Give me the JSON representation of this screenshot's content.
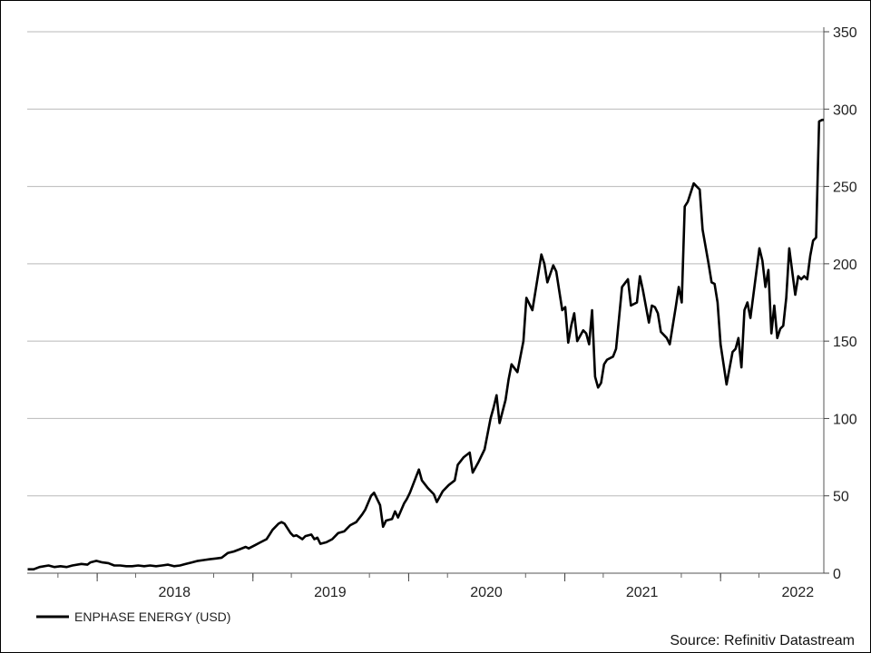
{
  "chart_data": {
    "type": "line",
    "title": "",
    "xlabel": "",
    "ylabel": "",
    "ylim": [
      0,
      350
    ],
    "yticks": [
      0,
      50,
      100,
      150,
      200,
      250,
      300,
      350
    ],
    "y_axis_side": "right",
    "grid": "horizontal",
    "legend_position": "bottom-left",
    "xlim": [
      "2017-07-21",
      "2022-08-31"
    ],
    "x_tick_labels": [
      {
        "label": "2018",
        "date": "2018-07-01"
      },
      {
        "label": "2019",
        "date": "2019-07-01"
      },
      {
        "label": "2020",
        "date": "2020-07-01"
      },
      {
        "label": "2021",
        "date": "2021-07-01"
      },
      {
        "label": "2022",
        "date": "2022-07-01"
      }
    ],
    "x_minor_ticks": [
      "2017-10-01",
      "2018-01-01",
      "2018-04-01",
      "2018-10-01",
      "2019-01-01",
      "2019-04-01",
      "2019-10-01",
      "2020-01-01",
      "2020-04-01",
      "2020-10-01",
      "2021-01-01",
      "2021-04-01",
      "2021-10-01",
      "2022-01-01",
      "2022-04-01"
    ],
    "x_major_ticks": [
      "2018-01-01",
      "2019-01-01",
      "2020-01-01",
      "2021-01-01",
      "2022-01-01"
    ],
    "series": [
      {
        "name": "ENPHASE ENERGY (USD)",
        "color": "#000000",
        "points": [
          [
            "2017-07-22",
            2.5
          ],
          [
            "2017-08-05",
            2.5
          ],
          [
            "2017-08-19",
            4
          ],
          [
            "2017-09-09",
            5
          ],
          [
            "2017-09-23",
            4
          ],
          [
            "2017-10-07",
            4.5
          ],
          [
            "2017-10-21",
            4
          ],
          [
            "2017-11-04",
            5
          ],
          [
            "2017-11-25",
            6
          ],
          [
            "2017-12-09",
            5.5
          ],
          [
            "2017-12-16",
            7
          ],
          [
            "2017-12-30",
            8
          ],
          [
            "2018-01-13",
            7
          ],
          [
            "2018-01-27",
            6.5
          ],
          [
            "2018-02-10",
            5
          ],
          [
            "2018-02-24",
            5
          ],
          [
            "2018-03-10",
            4.5
          ],
          [
            "2018-03-24",
            4.5
          ],
          [
            "2018-04-07",
            5
          ],
          [
            "2018-04-21",
            4.5
          ],
          [
            "2018-05-05",
            5
          ],
          [
            "2018-05-19",
            4.5
          ],
          [
            "2018-06-02",
            5
          ],
          [
            "2018-06-16",
            5.5
          ],
          [
            "2018-06-30",
            4.5
          ],
          [
            "2018-07-14",
            5
          ],
          [
            "2018-07-28",
            6
          ],
          [
            "2018-08-11",
            7
          ],
          [
            "2018-08-25",
            8
          ],
          [
            "2018-09-08",
            8.5
          ],
          [
            "2018-09-22",
            9
          ],
          [
            "2018-10-06",
            9.5
          ],
          [
            "2018-10-20",
            10
          ],
          [
            "2018-11-03",
            13
          ],
          [
            "2018-11-17",
            14
          ],
          [
            "2018-12-01",
            15.5
          ],
          [
            "2018-12-15",
            17
          ],
          [
            "2018-12-22",
            16
          ],
          [
            "2019-01-05",
            18
          ],
          [
            "2019-01-19",
            20
          ],
          [
            "2019-02-02",
            22
          ],
          [
            "2019-02-09",
            25
          ],
          [
            "2019-02-16",
            28
          ],
          [
            "2019-03-02",
            32
          ],
          [
            "2019-03-09",
            33
          ],
          [
            "2019-03-16",
            32
          ],
          [
            "2019-03-30",
            26
          ],
          [
            "2019-04-06",
            24
          ],
          [
            "2019-04-13",
            24.5
          ],
          [
            "2019-04-27",
            22
          ],
          [
            "2019-05-04",
            24
          ],
          [
            "2019-05-18",
            25
          ],
          [
            "2019-05-25",
            22
          ],
          [
            "2019-06-01",
            23
          ],
          [
            "2019-06-08",
            19
          ],
          [
            "2019-06-22",
            20
          ],
          [
            "2019-07-06",
            22
          ],
          [
            "2019-07-20",
            26
          ],
          [
            "2019-08-03",
            27
          ],
          [
            "2019-08-17",
            31
          ],
          [
            "2019-08-31",
            33
          ],
          [
            "2019-09-14",
            38
          ],
          [
            "2019-09-21",
            41
          ],
          [
            "2019-10-05",
            50
          ],
          [
            "2019-10-12",
            52
          ],
          [
            "2019-10-26",
            44
          ],
          [
            "2019-11-02",
            30
          ],
          [
            "2019-11-09",
            34
          ],
          [
            "2019-11-23",
            35
          ],
          [
            "2019-11-30",
            40
          ],
          [
            "2019-12-07",
            36
          ],
          [
            "2019-12-21",
            45
          ],
          [
            "2019-12-28",
            48
          ],
          [
            "2020-01-04",
            52
          ],
          [
            "2020-01-18",
            62
          ],
          [
            "2020-01-25",
            67
          ],
          [
            "2020-02-01",
            60
          ],
          [
            "2020-02-15",
            55
          ],
          [
            "2020-02-29",
            51
          ],
          [
            "2020-03-07",
            46
          ],
          [
            "2020-03-21",
            53
          ],
          [
            "2020-04-04",
            57
          ],
          [
            "2020-04-18",
            60
          ],
          [
            "2020-04-25",
            70
          ],
          [
            "2020-05-09",
            75
          ],
          [
            "2020-05-23",
            78
          ],
          [
            "2020-05-30",
            65
          ],
          [
            "2020-06-13",
            72
          ],
          [
            "2020-06-27",
            80
          ],
          [
            "2020-07-11",
            100
          ],
          [
            "2020-07-18",
            107
          ],
          [
            "2020-07-25",
            115
          ],
          [
            "2020-08-01",
            97
          ],
          [
            "2020-08-15",
            112
          ],
          [
            "2020-08-22",
            125
          ],
          [
            "2020-08-29",
            135
          ],
          [
            "2020-09-12",
            130
          ],
          [
            "2020-09-26",
            150
          ],
          [
            "2020-10-03",
            178
          ],
          [
            "2020-10-17",
            170
          ],
          [
            "2020-10-24",
            182
          ],
          [
            "2020-11-07",
            206
          ],
          [
            "2020-11-14",
            200
          ],
          [
            "2020-11-21",
            188
          ],
          [
            "2020-12-05",
            199
          ],
          [
            "2020-12-12",
            195
          ],
          [
            "2020-12-26",
            170
          ],
          [
            "2021-01-02",
            172
          ],
          [
            "2021-01-09",
            149
          ],
          [
            "2021-01-16",
            160
          ],
          [
            "2021-01-23",
            168
          ],
          [
            "2021-01-30",
            150
          ],
          [
            "2021-02-13",
            157
          ],
          [
            "2021-02-20",
            155
          ],
          [
            "2021-02-27",
            148
          ],
          [
            "2021-03-06",
            170
          ],
          [
            "2021-03-13",
            127
          ],
          [
            "2021-03-20",
            120
          ],
          [
            "2021-03-27",
            123
          ],
          [
            "2021-04-03",
            135
          ],
          [
            "2021-04-10",
            138
          ],
          [
            "2021-04-24",
            140
          ],
          [
            "2021-05-01",
            145
          ],
          [
            "2021-05-08",
            165
          ],
          [
            "2021-05-15",
            185
          ],
          [
            "2021-05-29",
            190
          ],
          [
            "2021-06-05",
            173
          ],
          [
            "2021-06-19",
            175
          ],
          [
            "2021-06-26",
            192
          ],
          [
            "2021-07-03",
            183
          ],
          [
            "2021-07-17",
            162
          ],
          [
            "2021-07-24",
            173
          ],
          [
            "2021-07-31",
            172
          ],
          [
            "2021-08-07",
            168
          ],
          [
            "2021-08-14",
            156
          ],
          [
            "2021-08-28",
            152
          ],
          [
            "2021-09-04",
            148
          ],
          [
            "2021-09-18",
            172
          ],
          [
            "2021-09-25",
            185
          ],
          [
            "2021-10-02",
            175
          ],
          [
            "2021-10-09",
            237
          ],
          [
            "2021-10-16",
            240
          ],
          [
            "2021-10-30",
            252
          ],
          [
            "2021-11-06",
            250
          ],
          [
            "2021-11-13",
            248
          ],
          [
            "2021-11-20",
            222
          ],
          [
            "2021-12-04",
            200
          ],
          [
            "2021-12-11",
            188
          ],
          [
            "2021-12-18",
            187
          ],
          [
            "2021-12-25",
            175
          ],
          [
            "2022-01-01",
            148
          ],
          [
            "2022-01-08",
            135
          ],
          [
            "2022-01-15",
            122
          ],
          [
            "2022-01-29",
            143
          ],
          [
            "2022-02-05",
            145
          ],
          [
            "2022-02-12",
            152
          ],
          [
            "2022-02-19",
            133
          ],
          [
            "2022-02-26",
            170
          ],
          [
            "2022-03-05",
            175
          ],
          [
            "2022-03-12",
            165
          ],
          [
            "2022-03-19",
            180
          ],
          [
            "2022-03-26",
            195
          ],
          [
            "2022-04-02",
            210
          ],
          [
            "2022-04-09",
            202
          ],
          [
            "2022-04-16",
            185
          ],
          [
            "2022-04-23",
            196
          ],
          [
            "2022-04-30",
            155
          ],
          [
            "2022-05-07",
            173
          ],
          [
            "2022-05-14",
            152
          ],
          [
            "2022-05-21",
            158
          ],
          [
            "2022-05-28",
            160
          ],
          [
            "2022-06-04",
            178
          ],
          [
            "2022-06-11",
            210
          ],
          [
            "2022-06-18",
            195
          ],
          [
            "2022-06-25",
            180
          ],
          [
            "2022-07-02",
            192
          ],
          [
            "2022-07-09",
            190
          ],
          [
            "2022-07-16",
            192
          ],
          [
            "2022-07-23",
            190
          ],
          [
            "2022-07-30",
            205
          ],
          [
            "2022-08-06",
            215
          ],
          [
            "2022-08-13",
            217
          ],
          [
            "2022-08-20",
            292
          ],
          [
            "2022-08-27",
            293
          ],
          [
            "2022-08-31",
            293
          ]
        ]
      }
    ],
    "tail_points_note_free": [
      [
        "2022-08-31",
        291
      ]
    ]
  },
  "legend": {
    "label": "ENPHASE ENERGY (USD)"
  },
  "footer": {
    "source": "Source: Refinitiv Datastream"
  }
}
